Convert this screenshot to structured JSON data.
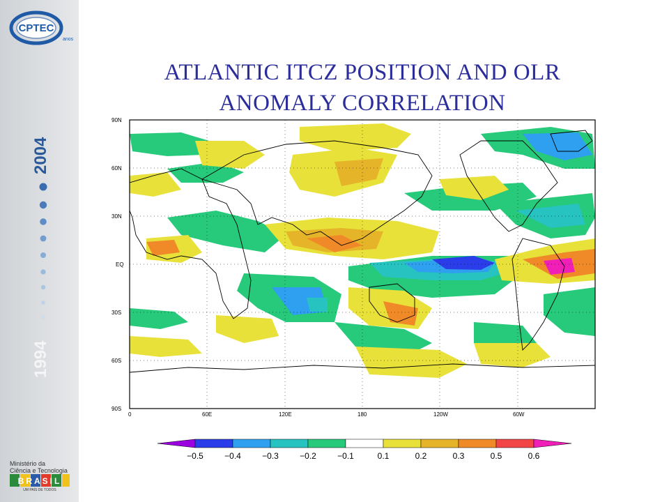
{
  "title": {
    "line1": "ATLANTIC ITCZ POSITION AND OLR",
    "line2": "ANOMALY CORRELATION"
  },
  "sidebar": {
    "logo_text": "CPTEC",
    "logo_subtext": "anos",
    "year_start": "1994",
    "year_end": "2004",
    "ministry_line1": "Ministério da",
    "ministry_line2": "Ciência e Tecnologia",
    "country_logo_text": "BRASIL",
    "country_logo_subtext": "UM PAÍS DE TODOS"
  },
  "map": {
    "lat_labels": [
      "90N",
      "60N",
      "30N",
      "EQ",
      "30S",
      "60S",
      "90S"
    ],
    "lon_labels": [
      "0",
      "60E",
      "120E",
      "180",
      "120W",
      "60W"
    ]
  },
  "colorbar": {
    "labels": [
      "−0.5",
      "−0.4",
      "−0.3",
      "−0.2",
      "−0.1",
      "0.1",
      "0.2",
      "0.3",
      "0.5",
      "0.6"
    ],
    "colors": [
      "#9a00e0",
      "#2a3de8",
      "#2f9ff0",
      "#27c3c0",
      "#27c97a",
      "#ffffff",
      "#e8e13a",
      "#e6b428",
      "#f08a28",
      "#f24646",
      "#f01fb8"
    ]
  },
  "anomaly_colors": {
    "neg_strong": "#2a3de8",
    "neg_mid": "#2f9ff0",
    "neg_cyan": "#27c3c0",
    "neg_weak": "#27c97a",
    "pos_weak": "#e8e13a",
    "pos_mid": "#e6b428",
    "pos_strong": "#f08a28",
    "pos_max": "#f01fb8"
  }
}
